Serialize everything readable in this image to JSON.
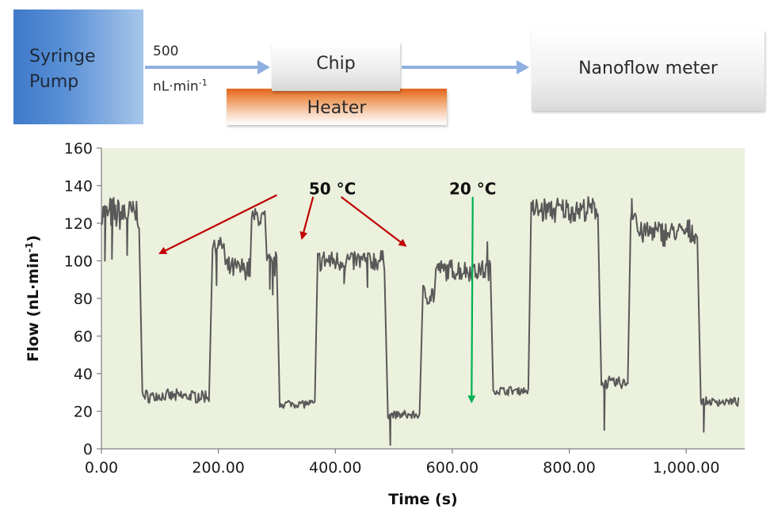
{
  "diagram": {
    "pump_label_line1": "Syringe",
    "pump_label_line2": "Pump",
    "rate_value": "500",
    "rate_unit": "nL·min",
    "rate_unit_exp": "-1",
    "chip_label": "Chip",
    "heater_label": "Heater",
    "meter_label": "Nanoflow meter",
    "arrow_color": "#8fb0e0"
  },
  "chart_data": {
    "type": "line",
    "xlabel": "Time (s)",
    "ylabel_main": "Flow (nL·min",
    "ylabel_exp": "-1",
    "ylabel_close": ")",
    "xlim": [
      0,
      1100
    ],
    "ylim": [
      0,
      160
    ],
    "x_ticks": [
      0,
      200,
      400,
      600,
      800,
      1000
    ],
    "x_tick_labels": [
      "0.00",
      "200.00",
      "400.00",
      "600.00",
      "800.00",
      "1,000.00"
    ],
    "y_ticks": [
      0,
      20,
      40,
      60,
      80,
      100,
      120,
      140,
      160
    ],
    "y_tick_labels": [
      "0",
      "20",
      "40",
      "60",
      "80",
      "100",
      "120",
      "140",
      "160"
    ],
    "plot_background": "#ebf1dd",
    "line_color": "#595959",
    "series": [
      {
        "segments": [
          {
            "t0": 0,
            "t1": 65,
            "level": 125,
            "noise": 8
          },
          {
            "t0": 70,
            "t1": 185,
            "level": 28,
            "noise": 3
          },
          {
            "t0": 190,
            "t1": 210,
            "level": 108,
            "noise": 4
          },
          {
            "t0": 212,
            "t1": 255,
            "level": 96,
            "noise": 5
          },
          {
            "t0": 257,
            "t1": 280,
            "level": 123,
            "noise": 5
          },
          {
            "t0": 283,
            "t1": 300,
            "level": 98,
            "noise": 6
          },
          {
            "t0": 305,
            "t1": 365,
            "level": 24,
            "noise": 2
          },
          {
            "t0": 370,
            "t1": 485,
            "level": 100,
            "noise": 5
          },
          {
            "t0": 490,
            "t1": 545,
            "level": 18,
            "noise": 2
          },
          {
            "t0": 550,
            "t1": 570,
            "level": 82,
            "noise": 5
          },
          {
            "t0": 572,
            "t1": 665,
            "level": 95,
            "noise": 5
          },
          {
            "t0": 670,
            "t1": 730,
            "level": 31,
            "noise": 2
          },
          {
            "t0": 735,
            "t1": 850,
            "level": 127,
            "noise": 6
          },
          {
            "t0": 855,
            "t1": 900,
            "level": 35,
            "noise": 3
          },
          {
            "t0": 905,
            "t1": 915,
            "level": 125,
            "noise": 5
          },
          {
            "t0": 917,
            "t1": 1020,
            "level": 115,
            "noise": 6
          },
          {
            "t0": 1025,
            "t1": 1090,
            "level": 25,
            "noise": 2
          }
        ],
        "spikes": [
          {
            "t": 6,
            "value": 100
          },
          {
            "t": 18,
            "value": 101
          },
          {
            "t": 44,
            "value": 103
          },
          {
            "t": 197,
            "value": 87
          },
          {
            "t": 288,
            "value": 85
          },
          {
            "t": 293,
            "value": 82
          },
          {
            "t": 415,
            "value": 88
          },
          {
            "t": 455,
            "value": 86
          },
          {
            "t": 494,
            "value": 2
          },
          {
            "t": 660,
            "value": 110
          },
          {
            "t": 860,
            "value": 10
          },
          {
            "t": 907,
            "value": 133
          },
          {
            "t": 1030,
            "value": 9
          }
        ]
      }
    ],
    "annotations": [
      {
        "label": "50 °C",
        "x": 395,
        "y": 132,
        "color": "#c00000",
        "arrows": [
          {
            "from": [
              300,
              135
            ],
            "to": [
              100,
              104
            ]
          },
          {
            "from": [
              362,
              134
            ],
            "to": [
              343,
              112
            ]
          },
          {
            "from": [
              410,
              134
            ],
            "to": [
              520,
              108
            ]
          }
        ]
      },
      {
        "label": "20 °C",
        "x": 635,
        "y": 132,
        "color": "#00b050",
        "arrows": [
          {
            "from": [
              635,
              134
            ],
            "to": [
              633,
              25
            ]
          }
        ]
      }
    ]
  }
}
